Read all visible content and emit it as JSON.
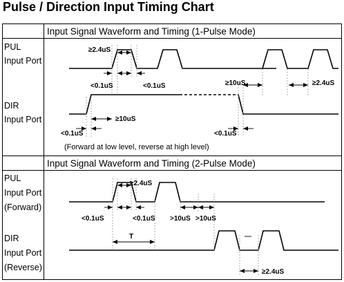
{
  "title": "Pulse / Direction Input Timing Chart",
  "one_pulse_mode": {
    "heading": "Input Signal Waveform and Timing (1-Pulse Mode)",
    "pul_label": [
      "PUL",
      "Input Port"
    ],
    "dir_label": [
      "DIR",
      "Input Port"
    ],
    "annotations": {
      "pulse_width": "≥2.4uS",
      "rise_time": "<0.1uS",
      "fall_time": "<0.1uS",
      "dir_setup": "≥10uS",
      "low_width": "≥2.4uS",
      "dir_rise": "<0.1uS",
      "dir_lead": "≥10uS",
      "dir_fall": "<0.1uS"
    },
    "note": "(Forward at low level, reverse at high level)"
  },
  "two_pulse_mode": {
    "heading": "Input Signal Waveform and Timing (2-Pulse Mode)",
    "pul_label": [
      "PUL",
      "Input Port",
      "(Forward)"
    ],
    "dir_label": [
      "DIR",
      "Input Port",
      "(Reverse)"
    ],
    "annotations": {
      "pulse_width": "≥2.4uS",
      "rise_time": "<0.1uS",
      "fall_time": "<0.1uS",
      "gap_1": ">10uS",
      "gap_2": ">10uS",
      "period": "T",
      "reverse_width": "≥2.4uS"
    }
  }
}
